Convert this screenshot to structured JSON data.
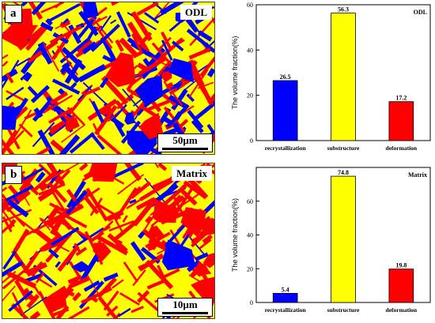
{
  "figure": {
    "panels": [
      {
        "letter": "a",
        "name": "ODL",
        "scale_label": "50µm"
      },
      {
        "letter": "b",
        "name": "Matrix",
        "scale_label": "10µm"
      }
    ]
  },
  "colors": {
    "recrystallization": "#0000ff",
    "substructure": "#ffff00",
    "deformation": "#ff0000",
    "map_background": "#ffff00"
  },
  "chart_data": [
    {
      "type": "bar",
      "title": "ODL",
      "categories": [
        "recrystallization",
        "substructure",
        "deformation"
      ],
      "values": [
        26.5,
        56.3,
        17.2
      ],
      "value_labels": [
        "26.5",
        "56.3",
        "17.2"
      ],
      "colors": [
        "#0000ff",
        "#ffff00",
        "#ff0000"
      ],
      "ylabel": "The volume fraction(%)",
      "xlabel": "",
      "ylim": [
        0,
        60
      ],
      "yticks": [
        0,
        20,
        40,
        60
      ],
      "grid": false,
      "legend": "none"
    },
    {
      "type": "bar",
      "title": "Matrix",
      "categories": [
        "recrystallization",
        "substructure",
        "deformation"
      ],
      "values": [
        5.4,
        74.8,
        19.8
      ],
      "value_labels": [
        "5.4",
        "74.8",
        "19.8"
      ],
      "colors": [
        "#0000ff",
        "#ffff00",
        "#ff0000"
      ],
      "ylabel": "The volume fraction(%)",
      "xlabel": "",
      "ylim": [
        0,
        80
      ],
      "yticks": [
        0,
        20,
        40,
        60
      ],
      "grid": false,
      "legend": "none"
    }
  ]
}
